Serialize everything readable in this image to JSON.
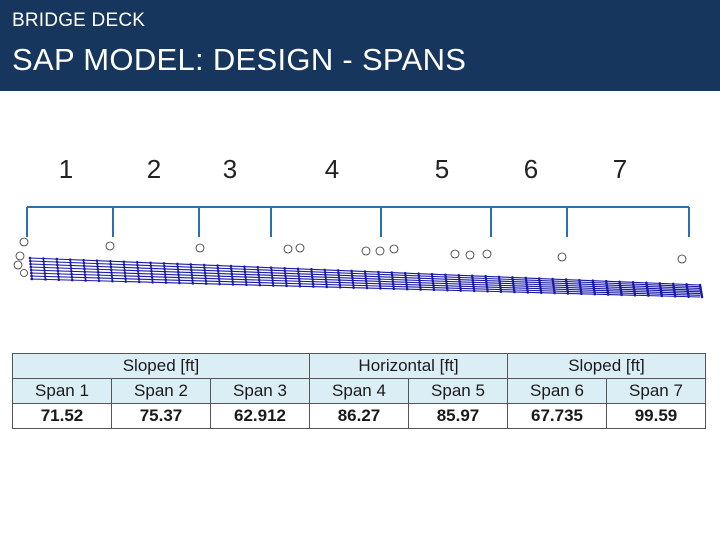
{
  "header": {
    "kicker": "BRIDGE DECK",
    "title": "SAP MODEL: DESIGN - SPANS"
  },
  "span_numbers": [
    "1",
    "2",
    "3",
    "4",
    "5",
    "6",
    "7"
  ],
  "table": {
    "groups": [
      {
        "label": "Sloped [ft]",
        "span": 3
      },
      {
        "label": "Horizontal [ft]",
        "span": 2
      },
      {
        "label": "Sloped [ft]",
        "span": 2
      }
    ],
    "columns": [
      "Span 1",
      "Span 2",
      "Span 3",
      "Span 4",
      "Span 5",
      "Span 6",
      "Span 7"
    ],
    "values": [
      "71.52",
      "75.37",
      "62.912",
      "86.27",
      "85.97",
      "67.735",
      "99.59"
    ]
  },
  "colors": {
    "header_bg": "#17365d",
    "table_header_bg": "#dbeef5",
    "mesh": "#1a1aa8",
    "bracket": "#2a6fae"
  }
}
